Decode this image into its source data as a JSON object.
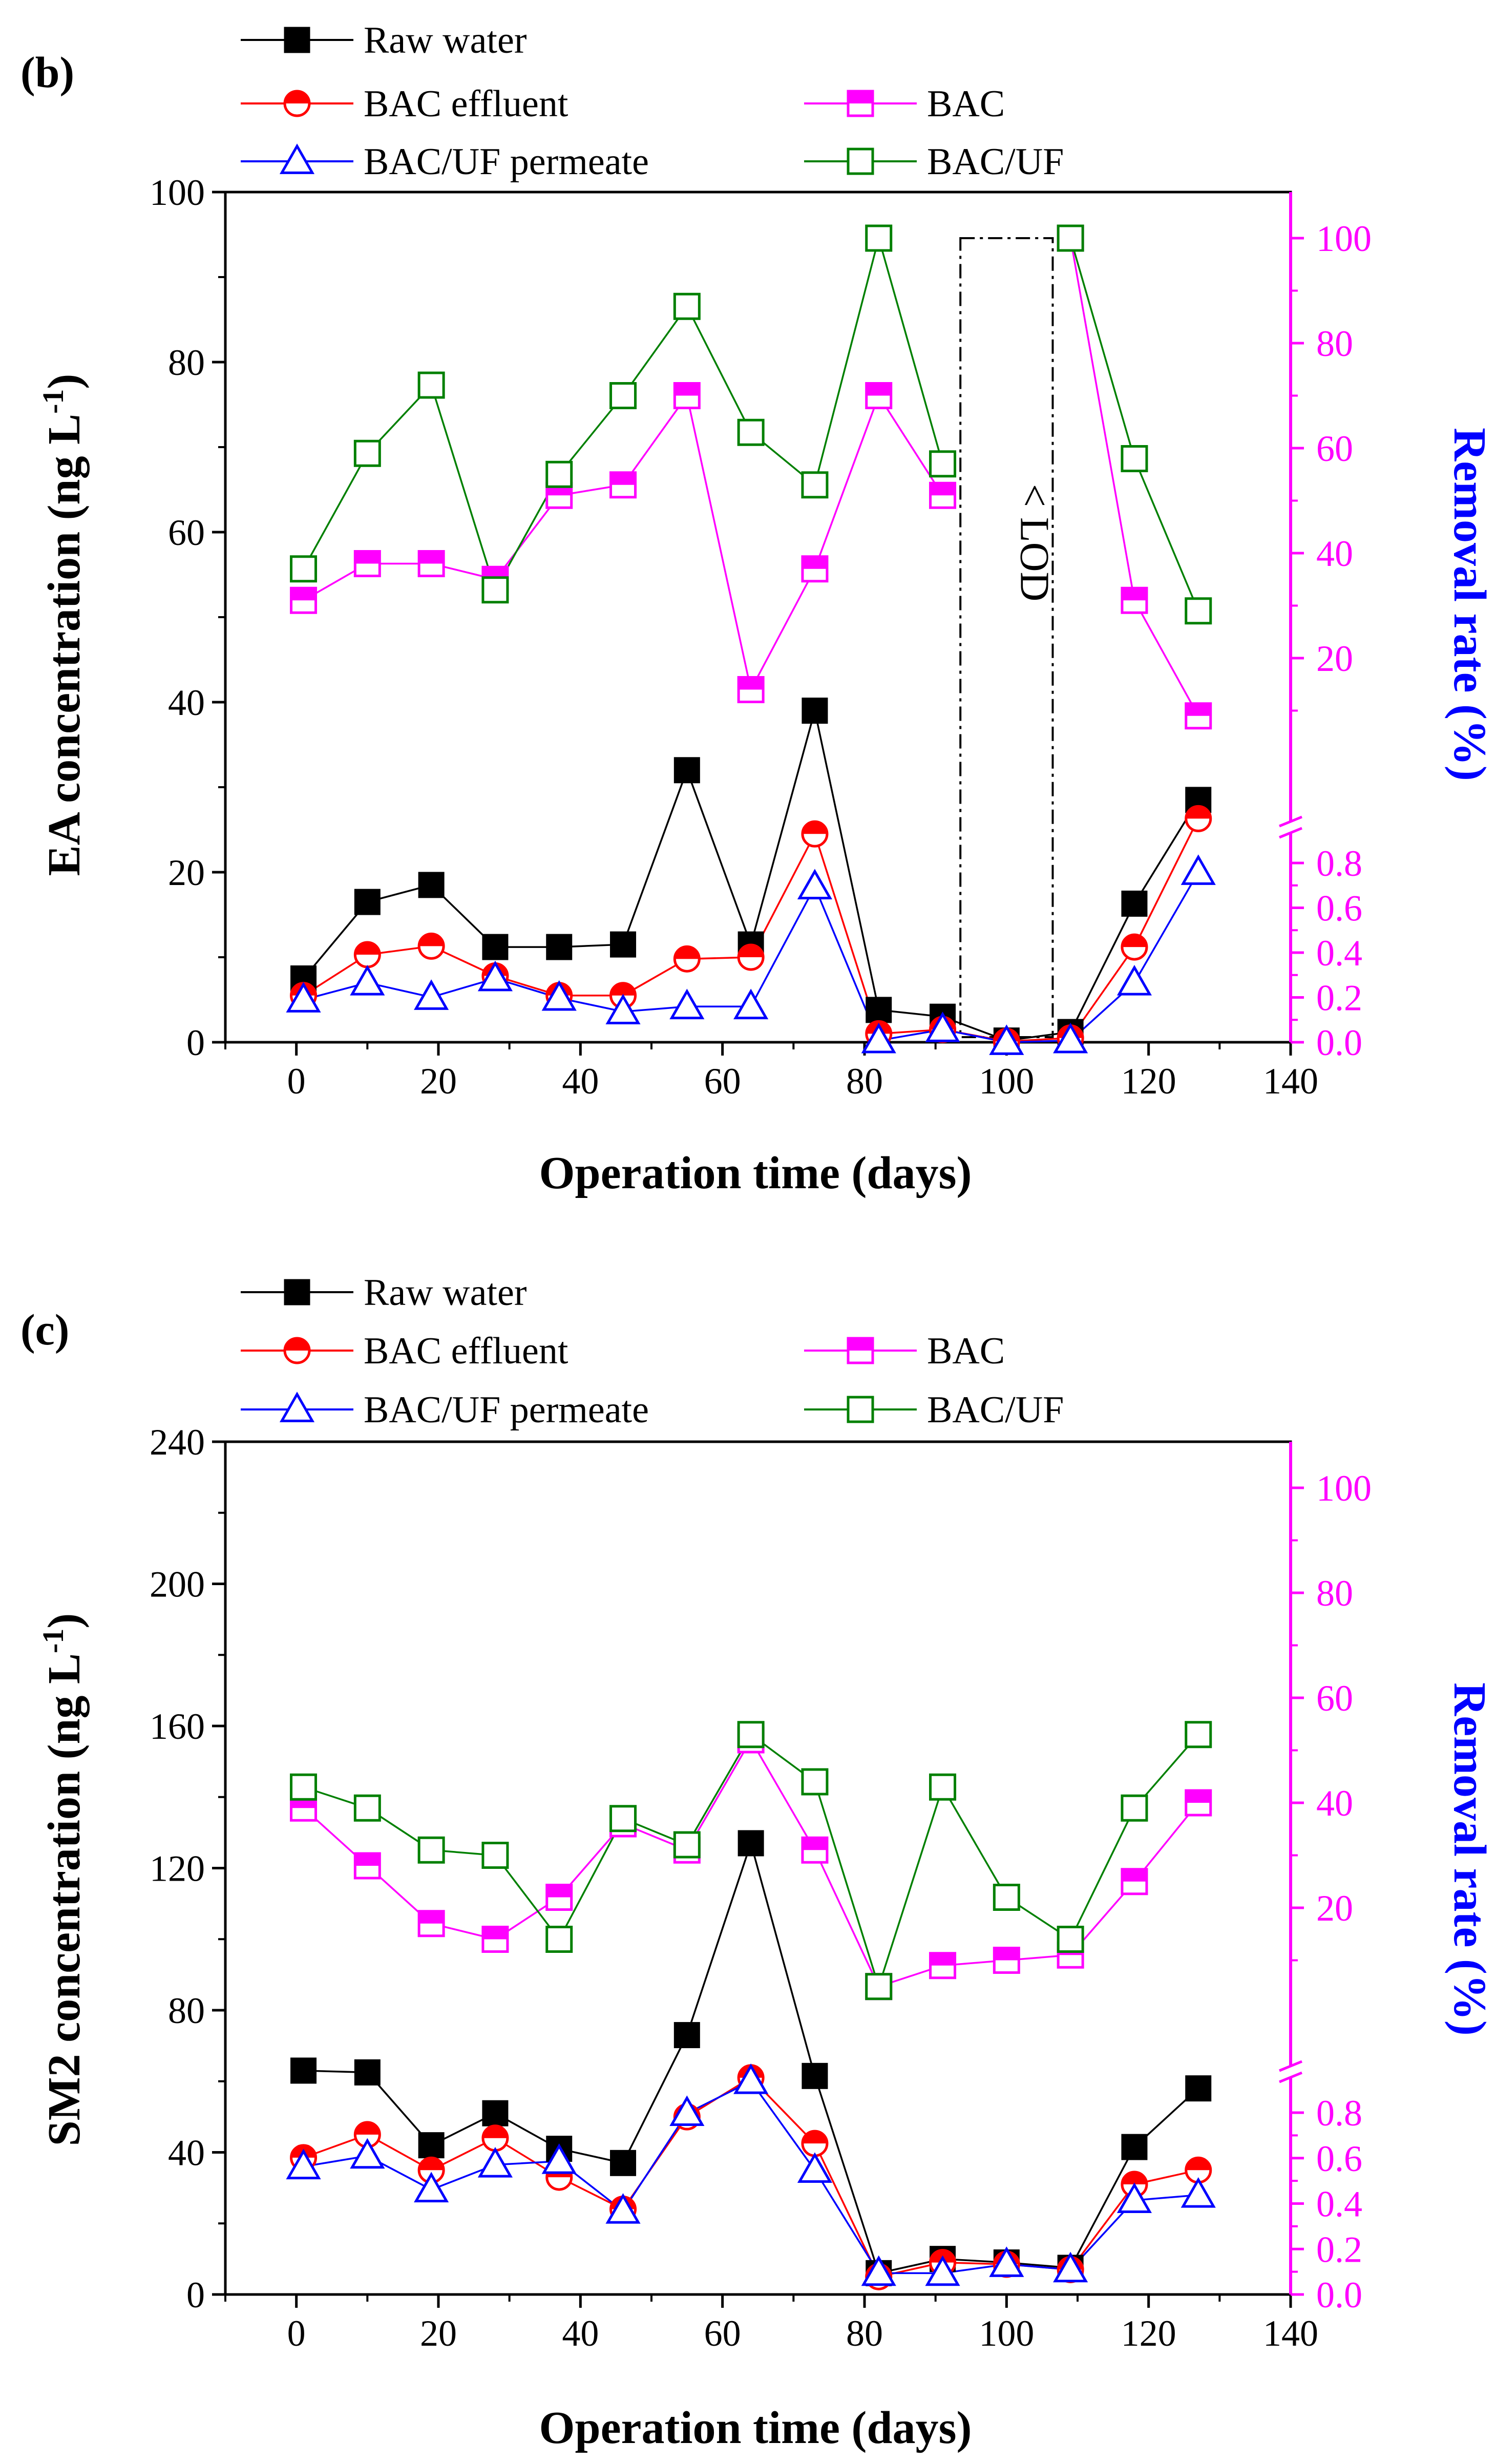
{
  "figure_note": "",
  "chart_data": [
    {
      "panel_label": "(b)",
      "type": "line",
      "xlabel": "Operation time (days)",
      "ylabel_left": "EA concentration (ng L",
      "ylabel_left_sup": "-1",
      "ylabel_left_close": ")",
      "ylabel_right": "Removal rate (%)",
      "xlim": [
        -10,
        140
      ],
      "x_ticks": [
        0,
        20,
        40,
        60,
        80,
        100,
        120,
        140
      ],
      "ylim_left": [
        0,
        100
      ],
      "y_left_ticks": [
        0,
        20,
        40,
        60,
        80,
        100
      ],
      "y_right_upper_ticks": [
        20,
        40,
        60,
        80,
        100
      ],
      "y_right_lower_ticks": [
        0.0,
        0.2,
        0.4,
        0.6,
        0.8
      ],
      "annotation": "< LOD",
      "x": [
        1,
        10,
        19,
        28,
        37,
        46,
        55,
        64,
        73,
        82,
        91,
        100,
        109,
        118,
        127
      ],
      "concentration_series": [
        {
          "name": "Raw water",
          "color": "#000000",
          "marker": "square-filled",
          "values": [
            7.5,
            16.5,
            18.5,
            11.2,
            11.2,
            11.5,
            32.0,
            11.5,
            39.0,
            3.8,
            3.0,
            0.2,
            1.2,
            16.3,
            28.5
          ]
        },
        {
          "name": "BAC effluent",
          "color": "#ff0000",
          "marker": "circle-half",
          "values": [
            5.5,
            10.3,
            11.3,
            7.8,
            5.5,
            5.5,
            9.8,
            10.0,
            24.5,
            1.0,
            1.5,
            0.1,
            0.5,
            11.2,
            26.3
          ]
        },
        {
          "name": "BAC/UF permeate",
          "color": "#0000ff",
          "marker": "triangle-open",
          "values": [
            5.0,
            7.0,
            5.3,
            7.5,
            5.2,
            3.6,
            4.2,
            4.2,
            18.3,
            0.2,
            1.5,
            0.0,
            0.2,
            7.0,
            20.0
          ]
        }
      ],
      "removal_series": [
        {
          "name": "BAC",
          "color": "#ff00ff",
          "marker": "square-half",
          "values": [
            31,
            38,
            38,
            35,
            51,
            53,
            70,
            null,
            37,
            70,
            51,
            null,
            100,
            31,
            9
          ]
        },
        {
          "name": "BAC/UF",
          "color": "#008000",
          "marker": "square-open",
          "values": [
            37,
            59,
            72,
            33,
            55,
            70,
            87,
            63,
            53,
            100,
            57,
            null,
            100,
            58,
            29
          ]
        }
      ],
      "bac_extra": {
        "x": 64,
        "value": 14
      }
    },
    {
      "panel_label": "(c)",
      "type": "line",
      "xlabel": "Operation time (days)",
      "ylabel_left": "SM2 concentration (ng L",
      "ylabel_left_sup": "-1",
      "ylabel_left_close": ")",
      "ylabel_right": "Removal rate (%)",
      "xlim": [
        -10,
        140
      ],
      "x_ticks": [
        0,
        20,
        40,
        60,
        80,
        100,
        120,
        140
      ],
      "ylim_left": [
        0,
        240
      ],
      "y_left_ticks": [
        0,
        40,
        80,
        120,
        160,
        200,
        240
      ],
      "y_right_upper_ticks": [
        20,
        40,
        60,
        80,
        100
      ],
      "y_right_lower_ticks": [
        0.0,
        0.2,
        0.4,
        0.6,
        0.8
      ],
      "x": [
        1,
        10,
        19,
        28,
        37,
        46,
        55,
        64,
        73,
        82,
        91,
        100,
        109,
        118,
        127
      ],
      "concentration_series": [
        {
          "name": "Raw water",
          "color": "#000000",
          "marker": "square-filled",
          "values": [
            63,
            62.5,
            42,
            51,
            41,
            37,
            73,
            127,
            61.5,
            6,
            10,
            9,
            7.5,
            41.5,
            58
          ]
        },
        {
          "name": "BAC effluent",
          "color": "#ff0000",
          "marker": "circle-half",
          "values": [
            38.5,
            45,
            35,
            44,
            33,
            24,
            50,
            61,
            42.5,
            5,
            9,
            8.5,
            7,
            31,
            35
          ]
        },
        {
          "name": "BAC/UF permeate",
          "color": "#0000ff",
          "marker": "triangle-open",
          "values": [
            36,
            39,
            29.5,
            36.5,
            37.5,
            23.5,
            51,
            60,
            35,
            6,
            6,
            8.5,
            7,
            26.5,
            28
          ]
        }
      ],
      "removal_series": [
        {
          "name": "BAC",
          "color": "#ff00ff",
          "marker": "square-half",
          "values": [
            39,
            28,
            17,
            14,
            22,
            36,
            31,
            52,
            31,
            5,
            9,
            10,
            11,
            25,
            40
          ]
        },
        {
          "name": "BAC/UF",
          "color": "#008000",
          "marker": "square-open",
          "values": [
            43,
            39,
            31,
            30,
            14,
            37,
            32,
            53,
            44,
            5,
            43,
            22,
            14,
            39,
            53
          ]
        }
      ]
    }
  ]
}
